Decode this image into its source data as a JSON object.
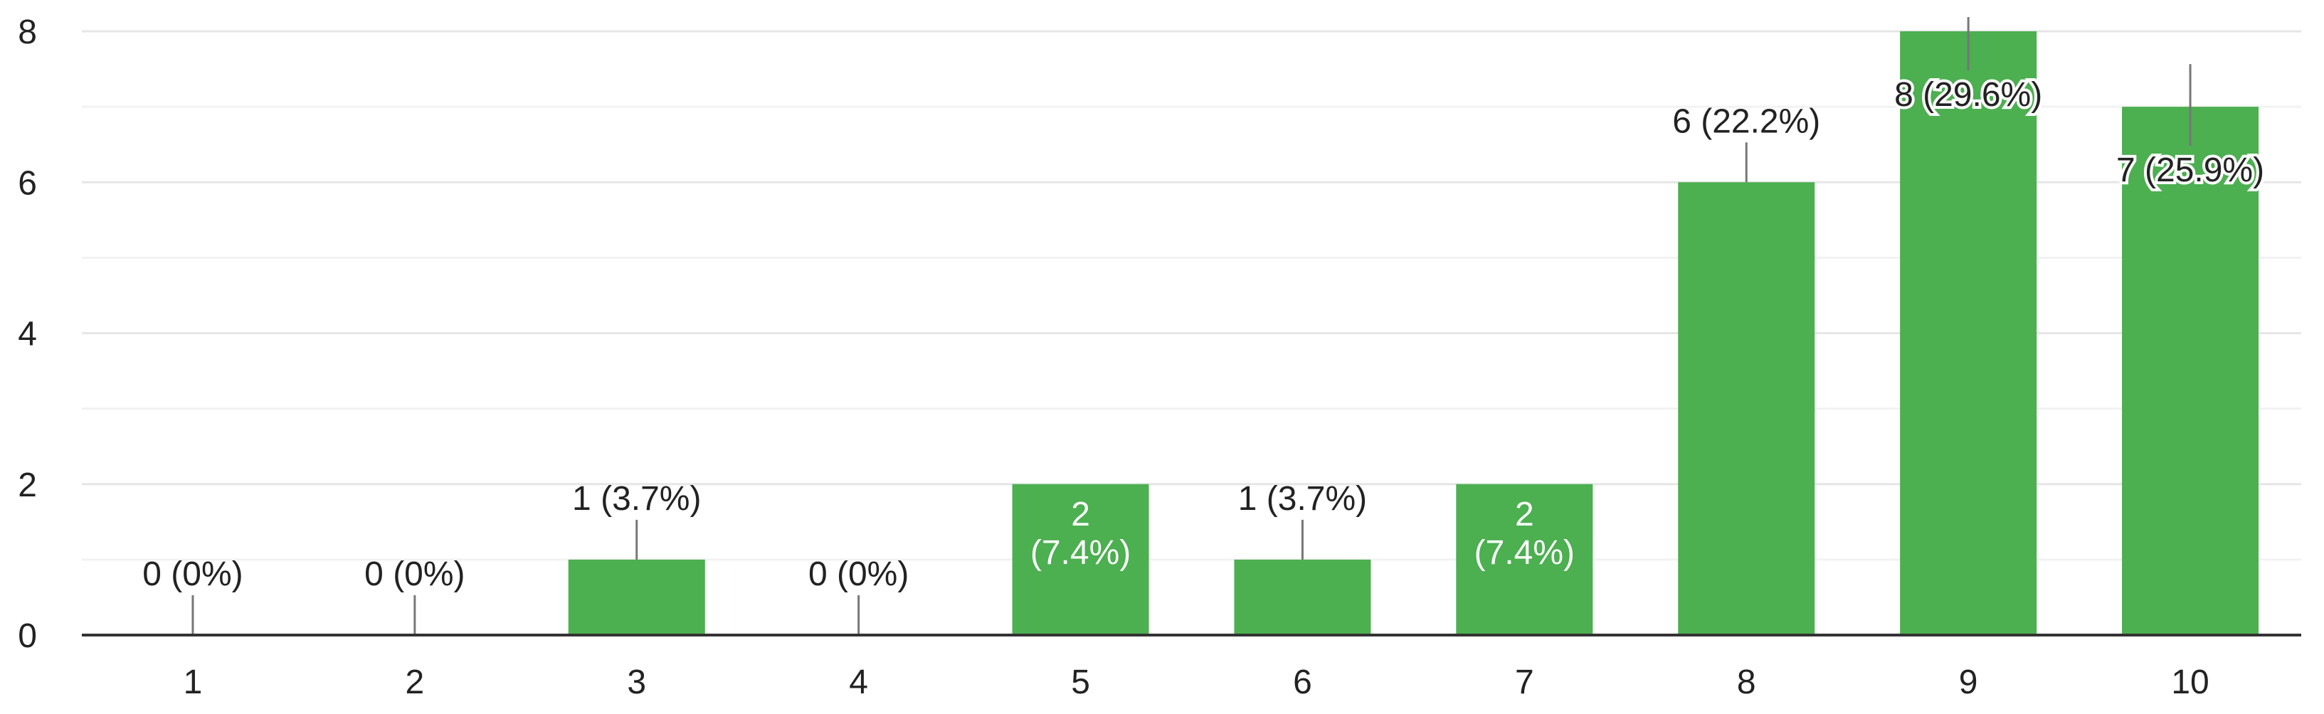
{
  "chart_data": {
    "type": "bar",
    "categories": [
      "1",
      "2",
      "3",
      "4",
      "5",
      "6",
      "7",
      "8",
      "9",
      "10"
    ],
    "values": [
      0,
      0,
      1,
      0,
      2,
      1,
      2,
      6,
      8,
      7
    ],
    "data_labels": [
      "0 (0%)",
      "0 (0%)",
      "1 (3.7%)",
      "0 (0%)",
      "2 (7.4%)",
      "1 (3.7%)",
      "2 (7.4%)",
      "6 (22.2%)",
      "8 (29.6%)",
      "7 (25.9%)"
    ],
    "title": "",
    "xlabel": "",
    "ylabel": "",
    "ylim": [
      0,
      8
    ],
    "yticks": [
      0,
      2,
      4,
      6,
      8
    ],
    "grid": true,
    "bar_color": "#4caf50",
    "label_color": "#222222",
    "inside_label_color": "#ffffff"
  }
}
